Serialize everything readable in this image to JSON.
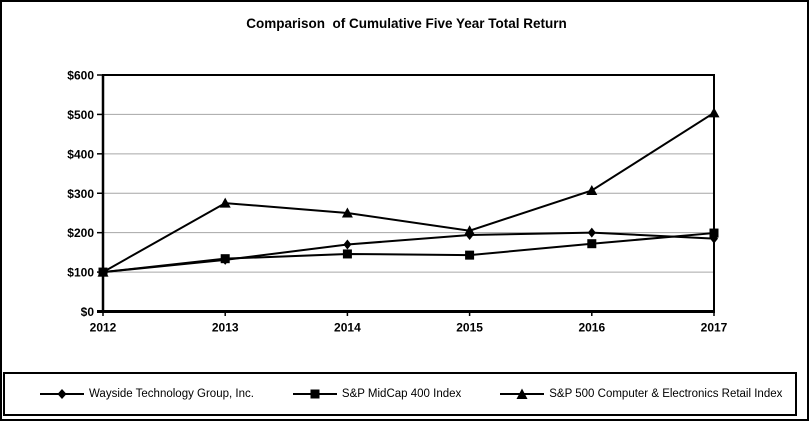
{
  "title": "Comparison  of Cumulative Five Year Total Return",
  "chart_data": {
    "type": "line",
    "categories": [
      "2012",
      "2013",
      "2014",
      "2015",
      "2016",
      "2017"
    ],
    "series": [
      {
        "name": "Wayside Technology Group, Inc.",
        "marker": "diamond",
        "color": "#000000",
        "values": [
          100,
          131,
          170,
          194,
          200,
          185
        ]
      },
      {
        "name": "S&P MidCap 400 Index",
        "marker": "square",
        "color": "#000000",
        "values": [
          100,
          134,
          146,
          143,
          172,
          199
        ]
      },
      {
        "name": "S&P 500 Computer & Electronics Retail Index",
        "marker": "triangle",
        "color": "#000000",
        "values": [
          100,
          275,
          250,
          205,
          307,
          504
        ]
      }
    ],
    "title": "Comparison  of Cumulative Five Year Total Return",
    "xlabel": "",
    "ylabel": "",
    "ylim": [
      0,
      600
    ],
    "y_tick_interval": 100,
    "y_tick_labels": [
      "$0",
      "$100",
      "$200",
      "$300",
      "$400",
      "$500",
      "$600"
    ],
    "grid": "horizontal",
    "grid_color": "#a6a6a6",
    "line_color": "#000000",
    "legend_position": "bottom-box"
  },
  "legend": {
    "items": [
      {
        "label": "Wayside Technology Group, Inc.",
        "marker": "diamond"
      },
      {
        "label": "S&P MidCap 400 Index",
        "marker": "square"
      },
      {
        "label": "S&P 500 Computer & Electronics Retail Index",
        "marker": "triangle"
      }
    ]
  }
}
